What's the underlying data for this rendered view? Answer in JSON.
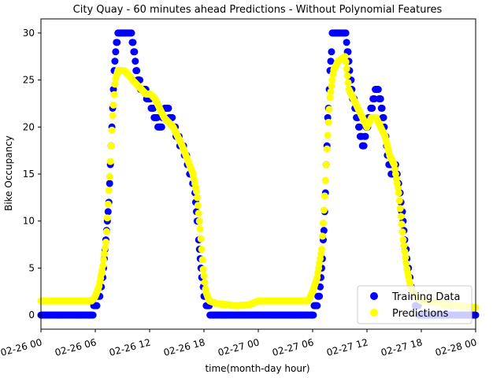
{
  "chart_data": {
    "type": "scatter",
    "title": "City Quay - 60 minutes ahead Predictions - Without Polynomial Features",
    "xlabel": "time(month-day hour)",
    "ylabel": "Bike Occupancy",
    "x_unit": "hours",
    "xlim": [
      0,
      48
    ],
    "ylim": [
      -1.5,
      31.5
    ],
    "x_ticks": [
      {
        "value": 0,
        "label": "02-26 00"
      },
      {
        "value": 6,
        "label": "02-26 06"
      },
      {
        "value": 12,
        "label": "02-26 12"
      },
      {
        "value": 18,
        "label": "02-26 18"
      },
      {
        "value": 24,
        "label": "02-27 00"
      },
      {
        "value": 30,
        "label": "02-27 06"
      },
      {
        "value": 36,
        "label": "02-27 12"
      },
      {
        "value": 42,
        "label": "02-27 18"
      },
      {
        "value": 48,
        "label": "02-28 00"
      }
    ],
    "y_ticks": [
      0,
      5,
      10,
      15,
      20,
      25,
      30
    ],
    "legend_position": "lower-right",
    "grid": false,
    "series": [
      {
        "name": "Training Data",
        "color": "#0000ff",
        "knots": [
          [
            0,
            0
          ],
          [
            5.6,
            0
          ],
          [
            6.0,
            1
          ],
          [
            6.4,
            2
          ],
          [
            6.8,
            4
          ],
          [
            7.2,
            8
          ],
          [
            7.6,
            14
          ],
          [
            7.9,
            22
          ],
          [
            8.2,
            28
          ],
          [
            8.5,
            30
          ],
          [
            10.0,
            30
          ],
          [
            10.3,
            28
          ],
          [
            10.7,
            25
          ],
          [
            11.3,
            24
          ],
          [
            12.0,
            23
          ],
          [
            12.6,
            21
          ],
          [
            13.2,
            20
          ],
          [
            13.8,
            22
          ],
          [
            14.4,
            21
          ],
          [
            15.0,
            19
          ],
          [
            15.6,
            18
          ],
          [
            16.0,
            17
          ],
          [
            16.5,
            15
          ],
          [
            16.9,
            14
          ],
          [
            17.3,
            10
          ],
          [
            17.6,
            6
          ],
          [
            17.9,
            3
          ],
          [
            18.3,
            1
          ],
          [
            19.0,
            0
          ],
          [
            30.0,
            0
          ],
          [
            30.3,
            1
          ],
          [
            30.7,
            2
          ],
          [
            31.0,
            5
          ],
          [
            31.3,
            10
          ],
          [
            31.6,
            19
          ],
          [
            31.9,
            26
          ],
          [
            32.2,
            30
          ],
          [
            33.6,
            30
          ],
          [
            34.0,
            27
          ],
          [
            34.3,
            24
          ],
          [
            34.7,
            22
          ],
          [
            35.1,
            20
          ],
          [
            35.6,
            18
          ],
          [
            36.0,
            20
          ],
          [
            36.5,
            22
          ],
          [
            37.0,
            24
          ],
          [
            37.5,
            23
          ],
          [
            37.9,
            20
          ],
          [
            38.3,
            17
          ],
          [
            38.7,
            15
          ],
          [
            39.1,
            16
          ],
          [
            39.5,
            14
          ],
          [
            39.9,
            11
          ],
          [
            40.3,
            7
          ],
          [
            40.7,
            4
          ],
          [
            41.1,
            2
          ],
          [
            41.5,
            1
          ],
          [
            42.0,
            0
          ],
          [
            48.0,
            0
          ]
        ]
      },
      {
        "name": "Predictions",
        "color": "#ffff00",
        "knots": [
          [
            0,
            1.5
          ],
          [
            5.6,
            1.5
          ],
          [
            6.0,
            2
          ],
          [
            6.4,
            3
          ],
          [
            6.8,
            5
          ],
          [
            7.2,
            8
          ],
          [
            7.6,
            15
          ],
          [
            7.9,
            21
          ],
          [
            8.2,
            25
          ],
          [
            8.5,
            26
          ],
          [
            9.2,
            26
          ],
          [
            9.7,
            25.5
          ],
          [
            10.1,
            25
          ],
          [
            10.6,
            24.5
          ],
          [
            11.1,
            24
          ],
          [
            11.6,
            23.5
          ],
          [
            12.1,
            23.5
          ],
          [
            12.6,
            23
          ],
          [
            13.1,
            22
          ],
          [
            13.6,
            21
          ],
          [
            14.1,
            20.5
          ],
          [
            14.6,
            20
          ],
          [
            15.1,
            19
          ],
          [
            15.6,
            18
          ],
          [
            16.0,
            17
          ],
          [
            16.4,
            16
          ],
          [
            16.8,
            15
          ],
          [
            17.2,
            13
          ],
          [
            17.6,
            9
          ],
          [
            17.9,
            5
          ],
          [
            18.2,
            2.5
          ],
          [
            18.6,
            1.5
          ],
          [
            19.5,
            1.2
          ],
          [
            21.5,
            1.0
          ],
          [
            23.0,
            1.1
          ],
          [
            24.0,
            1.5
          ],
          [
            29.5,
            1.5
          ],
          [
            30.0,
            2.5
          ],
          [
            30.5,
            4
          ],
          [
            31.0,
            7
          ],
          [
            31.3,
            12
          ],
          [
            31.6,
            18
          ],
          [
            31.9,
            23
          ],
          [
            32.3,
            26
          ],
          [
            32.8,
            27
          ],
          [
            33.6,
            27.5
          ],
          [
            34.0,
            24
          ],
          [
            34.5,
            23
          ],
          [
            35.0,
            22
          ],
          [
            35.5,
            21
          ],
          [
            36.0,
            20
          ],
          [
            36.5,
            21
          ],
          [
            37.0,
            21
          ],
          [
            37.5,
            20
          ],
          [
            38.0,
            19
          ],
          [
            38.5,
            17
          ],
          [
            39.0,
            16
          ],
          [
            39.5,
            13
          ],
          [
            40.0,
            8
          ],
          [
            40.4,
            5
          ],
          [
            40.8,
            3
          ],
          [
            41.3,
            2
          ],
          [
            42.0,
            1.5
          ],
          [
            43.0,
            1.4
          ],
          [
            44.0,
            1.2
          ],
          [
            46.0,
            1.0
          ],
          [
            48.0,
            0.8
          ]
        ]
      }
    ]
  }
}
